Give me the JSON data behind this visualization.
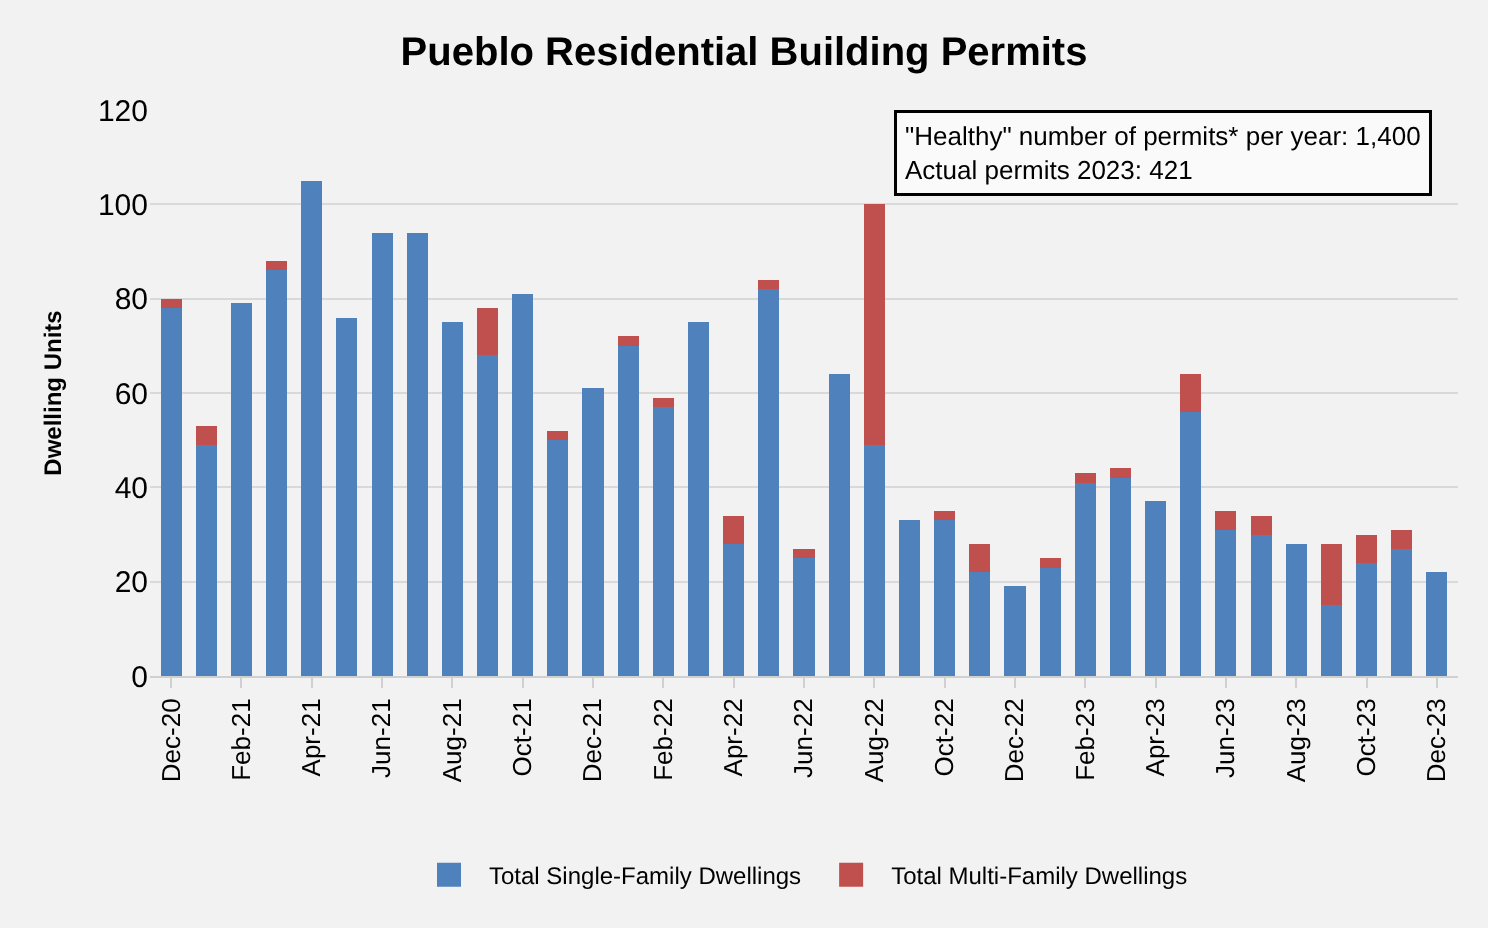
{
  "chart_data": {
    "type": "bar",
    "title": "Pueblo Residential Building Permits",
    "ylabel": "Dwelling Units",
    "categories": [
      "Dec-20",
      null,
      "Feb-21",
      null,
      "Apr-21",
      null,
      "Jun-21",
      null,
      "Aug-21",
      null,
      "Oct-21",
      null,
      "Dec-21",
      null,
      "Feb-22",
      null,
      "Apr-22",
      null,
      "Jun-22",
      null,
      "Aug-22",
      null,
      "Oct-22",
      null,
      "Dec-22",
      null,
      "Feb-23",
      null,
      "Apr-23",
      null,
      "Jun-23",
      null,
      "Aug-23",
      null,
      "Oct-23",
      null,
      "Dec-23"
    ],
    "series": [
      {
        "name": "Total Single-Family Dwellings",
        "color": "#4f81bd",
        "values": [
          78,
          49,
          79,
          86,
          105,
          76,
          94,
          94,
          75,
          68,
          81,
          50,
          61,
          70,
          57,
          75,
          28,
          82,
          25,
          64,
          49,
          33,
          33,
          22,
          19,
          23,
          41,
          42,
          37,
          56,
          31,
          30,
          28,
          15,
          24,
          27,
          22
        ]
      },
      {
        "name": "Total Multi-Family Dwellings",
        "color": "#c0504d",
        "values": [
          2,
          4,
          0,
          2,
          0,
          0,
          0,
          0,
          0,
          10,
          0,
          2,
          0,
          2,
          2,
          0,
          6,
          2,
          2,
          0,
          51,
          0,
          2,
          6,
          0,
          2,
          2,
          2,
          0,
          8,
          4,
          4,
          0,
          13,
          6,
          4,
          0
        ]
      }
    ],
    "stacked": true,
    "ylim": [
      0,
      120
    ],
    "yticks": [
      0,
      20,
      40,
      60,
      80,
      100,
      120
    ],
    "grid": "y",
    "legend": "bottom",
    "annotations": [
      "\"Healthy\" number of permits* per year: 1,400\nActual permits 2023: 421"
    ]
  }
}
